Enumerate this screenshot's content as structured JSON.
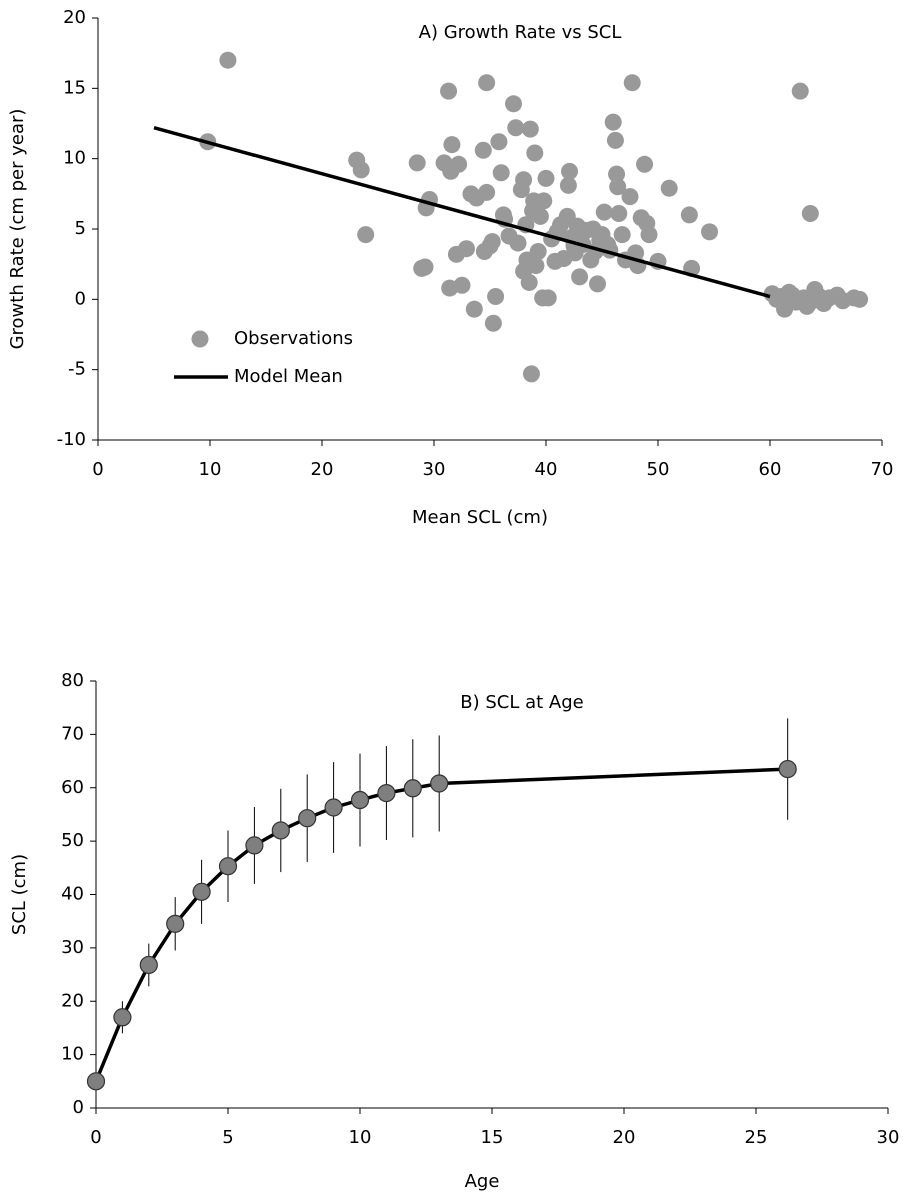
{
  "chart_data": [
    {
      "type": "scatter",
      "title": "A) Growth Rate vs SCL",
      "x_label": "Mean SCL (cm)",
      "y_label": "Growth Rate (cm per year)",
      "xlim": [
        0,
        70
      ],
      "xticks": [
        0,
        10,
        20,
        30,
        40,
        50,
        60,
        70
      ],
      "ylim": [
        -10,
        20
      ],
      "yticks": [
        -10,
        -5,
        0,
        5,
        10,
        15,
        20
      ],
      "legend": "lower-left",
      "series": [
        {
          "name": "Observations",
          "mark": "point",
          "color": "#999999",
          "x": [
            9.8,
            11.6,
            23.1,
            23.5,
            23.9,
            28.5,
            28.9,
            29.2,
            29.3,
            29.6,
            30.9,
            31.3,
            31.4,
            31.5,
            31.6,
            32,
            32.2,
            32.5,
            32.9,
            33.3,
            33.6,
            33.8,
            34.4,
            34.5,
            34.7,
            34.7,
            35,
            35.2,
            35.3,
            35.5,
            35.8,
            36,
            36.2,
            36.3,
            36.7,
            37.1,
            37.3,
            37.5,
            37.8,
            38,
            38,
            38.2,
            38.3,
            38.5,
            38.6,
            38.7,
            38.8,
            38.9,
            39,
            39.1,
            39.3,
            39.5,
            39.7,
            39.8,
            40,
            40.2,
            40.5,
            40.8,
            41,
            41.3,
            41.6,
            41.9,
            42,
            42.1,
            42.3,
            42.5,
            42.6,
            42.8,
            43,
            43.3,
            43.6,
            44,
            44.2,
            44.4,
            44.6,
            44.8,
            45,
            45.2,
            45.5,
            45.7,
            46,
            46.2,
            46.3,
            46.4,
            46.5,
            46.8,
            47.1,
            47.5,
            47.7,
            48,
            48.2,
            48.5,
            48.8,
            49,
            49.2,
            50,
            51,
            52.8,
            53,
            54.6,
            60.2,
            60.6,
            61,
            61.3,
            61.7,
            62,
            62.3,
            62.7,
            63,
            63.3,
            63.6,
            63.8,
            64,
            64.4,
            64.8,
            65.3,
            66,
            66.5,
            67.5,
            68
          ],
          "values": [
            11.2,
            17,
            9.9,
            9.2,
            4.6,
            9.7,
            2.2,
            2.3,
            6.5,
            7.1,
            9.7,
            14.8,
            0.8,
            9.1,
            11,
            3.2,
            9.6,
            1,
            3.6,
            7.5,
            -0.7,
            7.2,
            10.6,
            3.4,
            15.4,
            7.6,
            3.8,
            4.1,
            -1.7,
            0.2,
            11.2,
            9,
            6,
            5.7,
            4.5,
            13.9,
            12.2,
            4,
            7.8,
            2,
            8.5,
            5.3,
            2.8,
            1.2,
            12.1,
            -5.3,
            6.3,
            7,
            10.4,
            2.4,
            3.4,
            5.9,
            0.1,
            7,
            8.6,
            0.1,
            4.3,
            2.7,
            4.8,
            5.3,
            2.9,
            5.9,
            8.1,
            9.1,
            4.4,
            3.8,
            3.3,
            5.2,
            1.6,
            3.9,
            4.9,
            2.8,
            5,
            3.4,
            1.1,
            4.2,
            4.6,
            6.2,
            3.9,
            3.5,
            12.6,
            11.3,
            8.9,
            8,
            6.1,
            4.6,
            2.8,
            7.3,
            15.4,
            3.3,
            2.4,
            5.8,
            9.6,
            5.4,
            4.6,
            2.7,
            7.9,
            6,
            2.2,
            4.8,
            0.4,
            0,
            0.2,
            -0.7,
            0.5,
            0.3,
            -0.2,
            14.8,
            0.1,
            -0.5,
            6.1,
            -0.1,
            0.7,
            0.2,
            -0.3,
            0.1,
            0.3,
            -0.1,
            0.1,
            0
          ]
        },
        {
          "name": "Model Mean",
          "mark": "line",
          "color": "#000000",
          "x": [
            5,
            60
          ],
          "values": [
            12.2,
            0.2
          ]
        }
      ]
    },
    {
      "type": "line",
      "title": "B) SCL at Age",
      "x_label": "Age",
      "y_label": "SCL (cm)",
      "xlim": [
        0,
        30
      ],
      "xticks": [
        0,
        5,
        10,
        15,
        20,
        25,
        30
      ],
      "ylim": [
        0,
        80
      ],
      "yticks": [
        0,
        10,
        20,
        30,
        40,
        50,
        60,
        70,
        80
      ],
      "series": [
        {
          "mark": "line-point",
          "color": "#000000",
          "marker_color": "#7f7f7f",
          "x": [
            0,
            1,
            2,
            3,
            4,
            5,
            6,
            7,
            8,
            9,
            10,
            11,
            12,
            13,
            26.2
          ],
          "values": [
            5,
            17,
            26.8,
            34.5,
            40.5,
            45.3,
            49.2,
            52,
            54.3,
            56.3,
            57.7,
            59,
            59.9,
            60.8,
            63.5
          ],
          "errors": [
            0,
            3,
            4,
            5,
            6,
            6.7,
            7.2,
            7.8,
            8.2,
            8.5,
            8.7,
            8.8,
            9.2,
            9,
            9.5
          ]
        }
      ]
    }
  ]
}
